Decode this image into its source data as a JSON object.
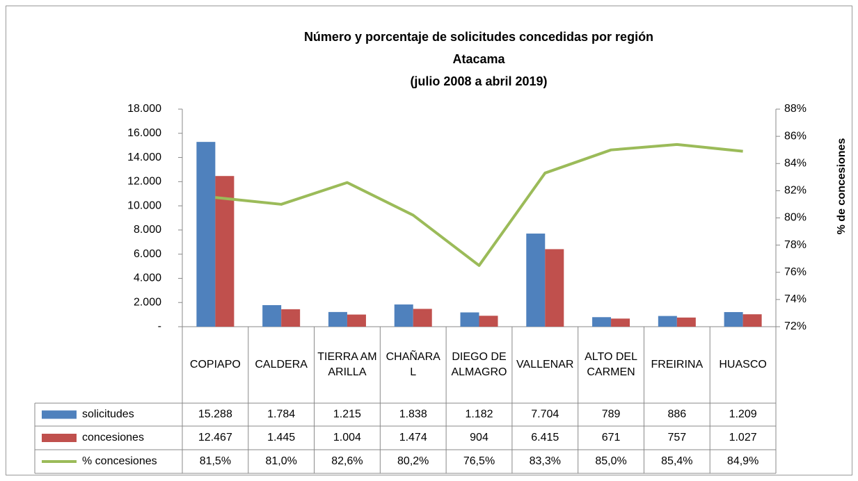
{
  "chart_data": {
    "type": "bar",
    "title": [
      "Número y porcentaje de solicitudes concedidas por región",
      "Atacama",
      "(julio 2008 a abril 2019)"
    ],
    "categories": [
      "COPIAPO",
      "CALDERA",
      "TIERRA AMARILLA",
      "CHAÑARAL",
      "DIEGO DE ALMAGRO",
      "VALLENAR",
      "ALTO DEL CARMEN",
      "FREIRINA",
      "HUASCO"
    ],
    "series": [
      {
        "name": "solicitudes",
        "type": "bar",
        "color": "#4f81bd",
        "values": [
          15288,
          1784,
          1215,
          1838,
          1182,
          7704,
          789,
          886,
          1209
        ],
        "value_labels": [
          "15.288",
          "1.784",
          "1.215",
          "1.838",
          "1.182",
          "7.704",
          "789",
          "886",
          "1.209"
        ]
      },
      {
        "name": "concesiones",
        "type": "bar",
        "color": "#c0504d",
        "values": [
          12467,
          1445,
          1004,
          1474,
          904,
          6415,
          671,
          757,
          1027
        ],
        "value_labels": [
          "12.467",
          "1.445",
          "1.004",
          "1.474",
          "904",
          "6.415",
          "671",
          "757",
          "1.027"
        ]
      },
      {
        "name": "% concesiones",
        "type": "line",
        "axis": "y2",
        "color": "#9bbb59",
        "values": [
          81.5,
          81.0,
          82.6,
          80.2,
          76.5,
          83.3,
          85.0,
          85.4,
          84.9
        ],
        "value_labels": [
          "81,5%",
          "81,0%",
          "82,6%",
          "80,2%",
          "76,5%",
          "83,3%",
          "85,0%",
          "85,4%",
          "84,9%"
        ]
      }
    ],
    "ylim": [
      0,
      18000
    ],
    "yticks": [
      {
        "value": 0,
        "label": "-"
      },
      {
        "value": 2000,
        "label": "2.000"
      },
      {
        "value": 4000,
        "label": "4.000"
      },
      {
        "value": 6000,
        "label": "6.000"
      },
      {
        "value": 8000,
        "label": "8.000"
      },
      {
        "value": 10000,
        "label": "10.000"
      },
      {
        "value": 12000,
        "label": "12.000"
      },
      {
        "value": 14000,
        "label": "14.000"
      },
      {
        "value": 16000,
        "label": "16.000"
      },
      {
        "value": 18000,
        "label": "18.000"
      }
    ],
    "y2lim": [
      72,
      88
    ],
    "y2ticks": [
      {
        "value": 72,
        "label": "72%"
      },
      {
        "value": 74,
        "label": "74%"
      },
      {
        "value": 76,
        "label": "76%"
      },
      {
        "value": 78,
        "label": "78%"
      },
      {
        "value": 80,
        "label": "80%"
      },
      {
        "value": 82,
        "label": "82%"
      },
      {
        "value": 84,
        "label": "84%"
      },
      {
        "value": 86,
        "label": "86%"
      },
      {
        "value": 88,
        "label": "88%"
      }
    ],
    "y2label": "% de concesiones"
  }
}
